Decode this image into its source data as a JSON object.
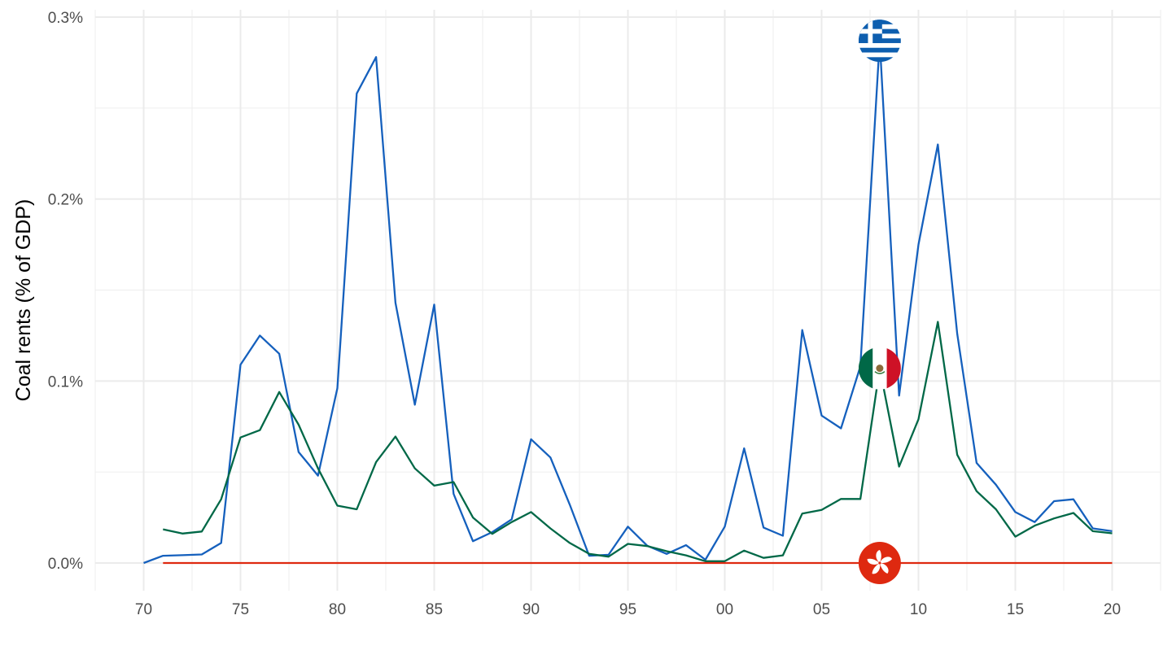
{
  "chart_data": {
    "type": "line",
    "ylabel": "Coal rents (% of GDP)",
    "xlabel": "",
    "xlim": [
      1967.5,
      2022.5
    ],
    "ylim": [
      -0.0145,
      0.3
    ],
    "x_ticks": [
      {
        "value": 1970,
        "label": "70"
      },
      {
        "value": 1975,
        "label": "75"
      },
      {
        "value": 1980,
        "label": "80"
      },
      {
        "value": 1985,
        "label": "85"
      },
      {
        "value": 1990,
        "label": "90"
      },
      {
        "value": 1995,
        "label": "95"
      },
      {
        "value": 2000,
        "label": "00"
      },
      {
        "value": 2005,
        "label": "05"
      },
      {
        "value": 2010,
        "label": "10"
      },
      {
        "value": 2015,
        "label": "15"
      },
      {
        "value": 2020,
        "label": "20"
      }
    ],
    "y_ticks": [
      {
        "value": 0.0,
        "label": "0.0%"
      },
      {
        "value": 0.1,
        "label": "0.1%"
      },
      {
        "value": 0.2,
        "label": "0.2%"
      },
      {
        "value": 0.3,
        "label": "0.3%"
      }
    ],
    "grid": true,
    "legend": "none",
    "series": [
      {
        "color": "#1560bd",
        "flag_icon": "greece-flag-icon",
        "x": [
          1970,
          1971,
          1972,
          1973,
          1974,
          1975,
          1976,
          1977,
          1978,
          1979,
          1980,
          1981,
          1982,
          1983,
          1984,
          1985,
          1986,
          1987,
          1988,
          1989,
          1990,
          1991,
          1992,
          1993,
          1994,
          1995,
          1996,
          1997,
          1998,
          1999,
          2000,
          2001,
          2002,
          2003,
          2004,
          2005,
          2006,
          2007,
          2008,
          2009,
          2010,
          2011,
          2012,
          2013,
          2014,
          2015,
          2016,
          2017,
          2018,
          2019,
          2020
        ],
        "values": [
          0.0,
          0.004,
          0.0043,
          0.0047,
          0.011,
          0.109,
          0.125,
          0.115,
          0.061,
          0.048,
          0.096,
          0.258,
          0.278,
          0.143,
          0.087,
          0.142,
          0.038,
          0.012,
          0.017,
          0.024,
          0.068,
          0.058,
          0.032,
          0.004,
          0.0045,
          0.02,
          0.0095,
          0.005,
          0.0098,
          0.0018,
          0.02,
          0.063,
          0.0195,
          0.015,
          0.128,
          0.081,
          0.074,
          0.108,
          0.287,
          0.092,
          0.175,
          0.23,
          0.126,
          0.055,
          0.043,
          0.028,
          0.0225,
          0.034,
          0.035,
          0.019,
          0.0175
        ]
      },
      {
        "color": "#006847",
        "flag_icon": "mexico-flag-icon",
        "x": [
          1971,
          1972,
          1973,
          1974,
          1975,
          1976,
          1977,
          1978,
          1979,
          1980,
          1981,
          1982,
          1983,
          1984,
          1985,
          1986,
          1987,
          1988,
          1989,
          1990,
          1991,
          1992,
          1993,
          1994,
          1995,
          1996,
          1997,
          1998,
          1999,
          2000,
          2001,
          2002,
          2003,
          2004,
          2005,
          2006,
          2007,
          2008,
          2009,
          2010,
          2011,
          2012,
          2013,
          2014,
          2015,
          2016,
          2017,
          2018,
          2019,
          2020
        ],
        "values": [
          0.0185,
          0.0162,
          0.0173,
          0.035,
          0.069,
          0.073,
          0.094,
          0.076,
          0.052,
          0.0315,
          0.0295,
          0.0555,
          0.0695,
          0.052,
          0.0425,
          0.0445,
          0.025,
          0.016,
          0.0225,
          0.028,
          0.019,
          0.011,
          0.005,
          0.0035,
          0.0105,
          0.0093,
          0.0065,
          0.0042,
          0.001,
          0.001,
          0.0068,
          0.0028,
          0.0042,
          0.0272,
          0.0292,
          0.0352,
          0.0352,
          0.107,
          0.053,
          0.079,
          0.1325,
          0.0595,
          0.0395,
          0.0295,
          0.0145,
          0.0205,
          0.0245,
          0.0275,
          0.0175,
          0.0163
        ]
      },
      {
        "color": "#de2910",
        "flag_icon": "hong-kong-flag-icon",
        "x": [
          1971,
          2020
        ],
        "values": [
          0.0,
          0.0
        ]
      }
    ]
  }
}
